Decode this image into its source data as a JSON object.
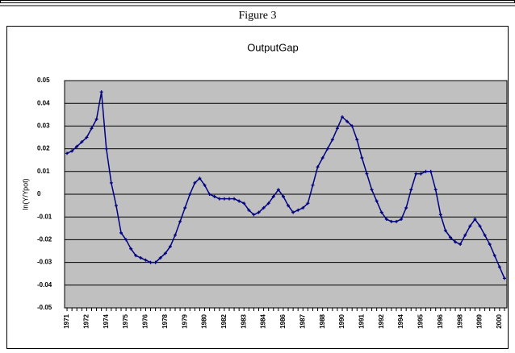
{
  "caption": "Figure 3",
  "chart_data": {
    "type": "line",
    "title": "OutputGap",
    "y_label": "ln(Y/Ypot)",
    "categories": [
      "1971",
      null,
      null,
      null,
      "1972",
      null,
      null,
      null,
      "1974",
      null,
      null,
      null,
      "1975",
      null,
      null,
      null,
      "1976",
      null,
      null,
      null,
      "1978",
      null,
      null,
      null,
      "1979",
      null,
      null,
      null,
      "1980",
      null,
      null,
      null,
      "1982",
      null,
      null,
      null,
      "1983",
      null,
      null,
      null,
      "1984",
      null,
      null,
      null,
      "1986",
      null,
      null,
      null,
      "1987",
      null,
      null,
      null,
      "1988",
      null,
      null,
      null,
      "1990",
      null,
      null,
      null,
      "1991",
      null,
      null,
      null,
      "1992",
      null,
      null,
      null,
      "1994",
      null,
      null,
      null,
      "1995",
      null,
      null,
      null,
      "1996",
      null,
      null,
      null,
      "1998",
      null,
      null,
      null,
      "1999",
      null,
      null,
      null,
      "2000",
      null
    ],
    "series": [
      {
        "color": "#000080",
        "values": [
          0.018,
          0.019,
          0.021,
          0.023,
          0.025,
          0.029,
          0.033,
          0.045,
          0.02,
          0.005,
          -0.005,
          -0.017,
          -0.02,
          -0.024,
          -0.027,
          -0.028,
          -0.029,
          -0.03,
          -0.03,
          -0.028,
          -0.026,
          -0.023,
          -0.018,
          -0.012,
          -0.006,
          0.0,
          0.005,
          0.007,
          0.004,
          0.0,
          -0.001,
          -0.002,
          -0.002,
          -0.002,
          -0.002,
          -0.003,
          -0.004,
          -0.007,
          -0.009,
          -0.008,
          -0.006,
          -0.004,
          -0.001,
          0.002,
          -0.001,
          -0.005,
          -0.008,
          -0.007,
          -0.006,
          -0.004,
          0.004,
          0.012,
          0.016,
          0.02,
          0.024,
          0.029,
          0.034,
          0.032,
          0.03,
          0.024,
          0.016,
          0.009,
          0.002,
          -0.003,
          -0.008,
          -0.011,
          -0.012,
          -0.012,
          -0.011,
          -0.006,
          0.002,
          0.009,
          0.009,
          0.01,
          0.01,
          0.002,
          -0.009,
          -0.016,
          -0.019,
          -0.021,
          -0.022,
          -0.018,
          -0.014,
          -0.011,
          -0.014,
          -0.018,
          -0.022,
          -0.027,
          -0.032,
          -0.037
        ]
      }
    ],
    "ylim": [
      -0.05,
      0.05
    ],
    "yticks": [
      -0.05,
      -0.04,
      -0.03,
      -0.02,
      -0.01,
      0,
      0.01,
      0.02,
      0.03,
      0.04,
      0.05
    ],
    "grid": true,
    "plot_background": "#c0c0c0"
  }
}
